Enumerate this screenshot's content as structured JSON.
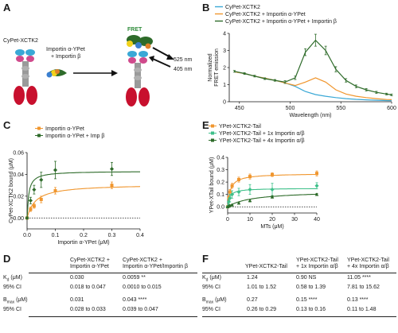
{
  "panels": {
    "A": "A",
    "B": "B",
    "C": "C",
    "D": "D",
    "E": "E",
    "F": "F"
  },
  "colors": {
    "cyan": "#3aa8d6",
    "orange": "#f0962e",
    "green": "#2e6b2a",
    "light_green": "#3ec08a",
    "red": "#c8102e"
  },
  "schematic": {
    "cypet_label": "CyPet-XCTK2",
    "importin_label_1": "Importin α-YPet",
    "importin_label_2": "+ Importin β",
    "fret_label": "FRET",
    "em_525": "525 nm",
    "ex_405": "405 nm"
  },
  "chart_data": [
    {
      "panel": "B",
      "type": "line",
      "xlabel": "Wavelength (nm)",
      "ylabel": "Normalized FRET emission",
      "xlim": [
        440,
        600
      ],
      "ylim": [
        0,
        4
      ],
      "xticks": [
        "450",
        "500",
        "550",
        "600"
      ],
      "yticks": [
        "0",
        "1",
        "2",
        "3",
        "4"
      ],
      "legend_placement": "top",
      "series": [
        {
          "name": "CyPet-XCTK2",
          "color": "#3aa8d6",
          "x": [
            445,
            455,
            465,
            475,
            485,
            495,
            505,
            515,
            525,
            535,
            545,
            555,
            565,
            575,
            585,
            595,
            600
          ],
          "y": [
            1.75,
            1.65,
            1.5,
            1.38,
            1.25,
            1.1,
            0.9,
            0.6,
            0.42,
            0.32,
            0.24,
            0.18,
            0.14,
            0.11,
            0.09,
            0.07,
            0.06
          ]
        },
        {
          "name": "CyPet-XCTK2 + Importin α-YPet",
          "color": "#f0962e",
          "x": [
            445,
            455,
            465,
            475,
            485,
            495,
            505,
            515,
            525,
            535,
            545,
            555,
            565,
            575,
            585,
            595,
            600
          ],
          "y": [
            1.75,
            1.65,
            1.5,
            1.38,
            1.25,
            1.1,
            0.95,
            1.15,
            1.4,
            1.15,
            0.7,
            0.45,
            0.32,
            0.24,
            0.18,
            0.13,
            0.12
          ]
        },
        {
          "name": "CyPet-XCTK2 + Importin α-YPet + Importin β",
          "color": "#2e6b2a",
          "x": [
            445,
            455,
            465,
            475,
            485,
            495,
            505,
            515,
            525,
            535,
            545,
            555,
            565,
            575,
            585,
            595,
            600
          ],
          "y": [
            1.78,
            1.65,
            1.5,
            1.35,
            1.25,
            1.15,
            1.4,
            2.9,
            3.6,
            3.0,
            1.9,
            1.25,
            0.9,
            0.7,
            0.55,
            0.45,
            0.4
          ],
          "err": [
            0.05,
            0.05,
            0.05,
            0.05,
            0.05,
            0.08,
            0.1,
            0.2,
            0.35,
            0.25,
            0.15,
            0.1,
            0.08,
            0.07,
            0.06,
            0.05,
            0.05
          ]
        }
      ]
    },
    {
      "panel": "C",
      "type": "scatter",
      "xlabel": "Importin α-YPet (μM)",
      "ylabel": "CyPet-XCTK2 bound (μM)",
      "xlim": [
        0,
        0.4
      ],
      "ylim": [
        -0.01,
        0.06
      ],
      "xticks": [
        "0.0",
        "0.1",
        "0.2",
        "0.3",
        "0.4"
      ],
      "yticks": [
        "0.00",
        "0.02",
        "0.04",
        "0.06"
      ],
      "legend_placement": "top",
      "series": [
        {
          "name": "Importin α-YPet",
          "color": "#f0962e",
          "kd": 0.03,
          "bmax": 0.031,
          "x": [
            0,
            0.0125,
            0.025,
            0.05,
            0.1,
            0.3
          ],
          "y": [
            0,
            0.008,
            0.011,
            0.017,
            0.025,
            0.03
          ],
          "err": [
            0.001,
            0.002,
            0.002,
            0.003,
            0.003,
            0.003
          ]
        },
        {
          "name": "Importin α-YPet + Imp β",
          "color": "#2e6b2a",
          "kd": 0.0059,
          "bmax": 0.043,
          "x": [
            0,
            0.0125,
            0.025,
            0.05,
            0.1,
            0.3
          ],
          "y": [
            0,
            0.016,
            0.026,
            0.035,
            0.044,
            0.045
          ],
          "err": [
            0.001,
            0.003,
            0.004,
            0.007,
            0.008,
            0.006
          ]
        }
      ]
    },
    {
      "panel": "E",
      "type": "scatter",
      "xlabel": "MTs (μM)",
      "ylabel": "YPet-XTail bound (μM)",
      "xlim": [
        0,
        40
      ],
      "ylim": [
        -0.05,
        0.4
      ],
      "xticks": [
        "0",
        "10",
        "20",
        "30",
        "40"
      ],
      "yticks": [
        "0.0",
        "0.1",
        "0.2",
        "0.3",
        "0.4"
      ],
      "legend_placement": "top",
      "series": [
        {
          "name": "YPet-XCTK2-Tail",
          "color": "#f0962e",
          "kd": 1.24,
          "bmax": 0.27,
          "x": [
            0,
            0.5,
            1,
            2,
            5,
            10,
            20,
            40
          ],
          "y": [
            0,
            0.07,
            0.12,
            0.17,
            0.22,
            0.245,
            0.26,
            0.27
          ],
          "err": [
            0.005,
            0.02,
            0.02,
            0.02,
            0.02,
            0.02,
            0.015,
            0.02
          ]
        },
        {
          "name": "YPet-XCTK2-Tail + 1x Importin α/β",
          "color": "#3ec08a",
          "kd": 0.9,
          "bmax": 0.15,
          "x": [
            0,
            0.5,
            1,
            2,
            5,
            10,
            20,
            40
          ],
          "y": [
            0,
            0.04,
            0.07,
            0.1,
            0.12,
            0.14,
            0.14,
            0.17
          ],
          "err": [
            0.005,
            0.02,
            0.03,
            0.03,
            0.03,
            0.04,
            0.05,
            0.025
          ]
        },
        {
          "name": "YPet-XCTK2-Tail + 4x Importin α/β",
          "color": "#2e6b2a",
          "kd": 11.05,
          "bmax": 0.13,
          "x": [
            0,
            0.5,
            1,
            2,
            5,
            10,
            20,
            40
          ],
          "y": [
            0,
            0.005,
            0.01,
            0.015,
            0.03,
            0.05,
            0.08,
            0.1
          ],
          "err": [
            0.005,
            0.005,
            0.005,
            0.005,
            0.008,
            0.01,
            0.01,
            0.008
          ]
        }
      ]
    }
  ],
  "table_d": {
    "col1": [
      "CyPet-XCTK2 +",
      "Importin α-YPet"
    ],
    "col2": [
      "CyPet-XCTK2 +",
      "Importin α-YPet/Importin β"
    ],
    "rows": [
      {
        "label": "K_d (μM)",
        "label_main": "K",
        "label_sub": "d",
        "label_unit": " (μM)",
        "v1": "0.030",
        "v2": "0.0059",
        "sig": " **"
      },
      {
        "label_main": "95% CI",
        "label_sub": "",
        "label_unit": "",
        "v1": "0.018 to 0.047",
        "v2": "0.0010 to 0.015",
        "sig": ""
      },
      {
        "label_main": "B",
        "label_sub": "max",
        "label_unit": " (μM)",
        "v1": "0.031",
        "v2": "0.043",
        "sig": " ****"
      },
      {
        "label_main": "95% CI",
        "label_sub": "",
        "label_unit": "",
        "v1": "0.028 to 0.033",
        "v2": "0.039 to 0.047",
        "sig": ""
      }
    ]
  },
  "table_f": {
    "col1": [
      "YPet-XCTK2-Tail"
    ],
    "col2": [
      "YPet-XCTK2-Tail",
      "+ 1x Importin α/β"
    ],
    "col3": [
      "YPet-XCTK2-Tail",
      "+ 4x Importin α/β"
    ],
    "rows": [
      {
        "label_main": "K",
        "label_sub": "d",
        "label_unit": " (μM)",
        "v1": "1.24",
        "v2": "0.90 NS",
        "v3": "11.05 ****"
      },
      {
        "label_main": "95% CI",
        "label_sub": "",
        "label_unit": "",
        "v1": "1.01 to 1.52",
        "v2": "0.58 to 1.39",
        "v3": "7.81 to 15.62"
      },
      {
        "label_main": "B",
        "label_sub": "max",
        "label_unit": " (μM)",
        "v1": "0.27",
        "v2": "0.15 ****",
        "v3": "0.13 ****"
      },
      {
        "label_main": "95% CI",
        "label_sub": "",
        "label_unit": "",
        "v1": "0.26 to 0.29",
        "v2": "0.13 to 0.16",
        "v3": "0.11 to 1.48"
      }
    ]
  }
}
